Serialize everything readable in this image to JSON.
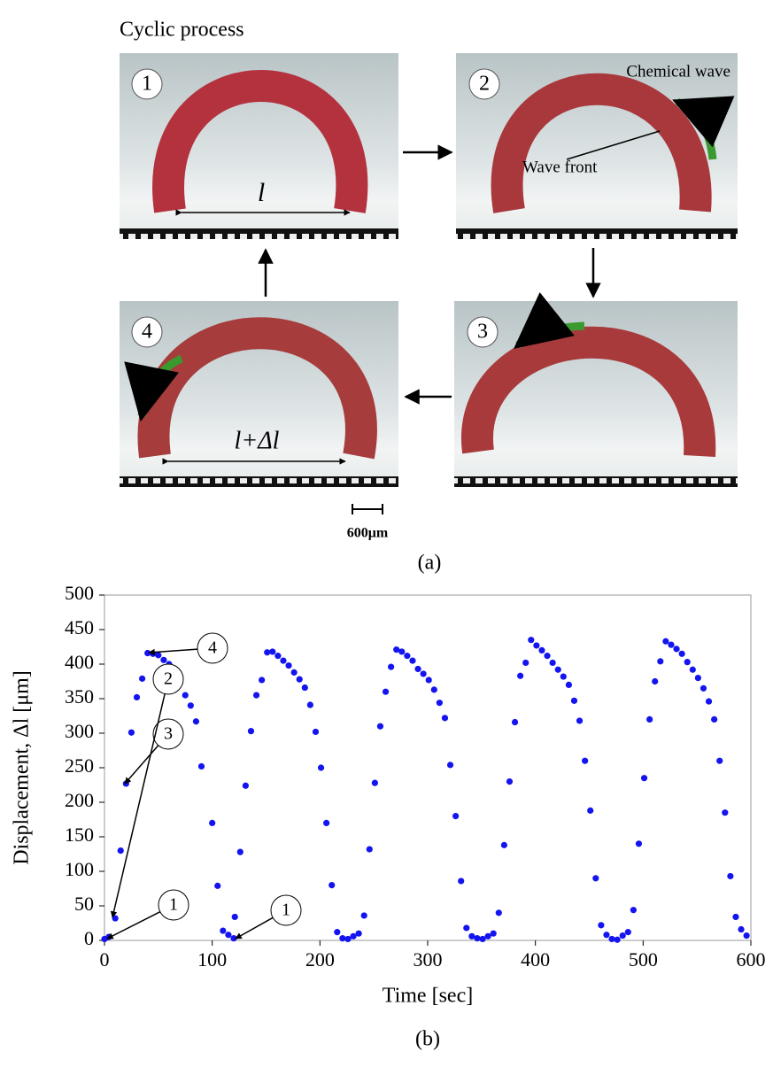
{
  "figure_a": {
    "title": "Cyclic process",
    "panels": [
      "1",
      "2",
      "3",
      "4"
    ],
    "chemical_wave": "Chemical wave",
    "wave_front": "Wave front",
    "length": "l",
    "length_plus": "l+Δl",
    "scale": "600μm",
    "caption": "(a)"
  },
  "chart_data": {
    "type": "scatter",
    "caption": "(b)",
    "xlabel": "Time [sec]",
    "ylabel": "Displacement, Δl [μm]",
    "color": "#1414f0",
    "x": [
      0,
      4,
      10,
      15,
      20,
      25,
      30,
      35,
      40,
      45,
      50,
      55,
      60,
      65,
      70,
      75,
      80,
      85,
      90,
      100,
      105,
      110,
      115,
      120,
      121,
      126,
      131,
      136,
      141,
      146,
      151,
      156,
      161,
      166,
      171,
      176,
      181,
      186,
      191,
      196,
      201,
      206,
      211,
      216,
      221,
      226,
      231,
      236,
      241,
      246,
      251,
      256,
      261,
      266,
      271,
      276,
      281,
      286,
      291,
      296,
      301,
      306,
      311,
      316,
      321,
      326,
      331,
      336,
      341,
      346,
      351,
      356,
      361,
      366,
      371,
      376,
      381,
      386,
      391,
      396,
      401,
      406,
      411,
      416,
      421,
      426,
      431,
      436,
      441,
      446,
      451,
      456,
      461,
      466,
      471,
      476,
      481,
      486,
      491,
      496,
      501,
      506,
      511,
      516,
      521,
      526,
      531,
      536,
      541,
      546,
      551,
      556,
      561,
      566,
      571,
      576,
      581,
      586,
      591,
      596
    ],
    "values": [
      2,
      5,
      32,
      130,
      227,
      301,
      352,
      379,
      416,
      415,
      413,
      406,
      400,
      383,
      373,
      355,
      340,
      317,
      252,
      170,
      79,
      14,
      8,
      3,
      34,
      128,
      224,
      303,
      355,
      377,
      417,
      418,
      412,
      405,
      398,
      388,
      378,
      366,
      341,
      302,
      250,
      170,
      80,
      12,
      3,
      2,
      6,
      10,
      36,
      132,
      228,
      310,
      360,
      396,
      421,
      418,
      412,
      405,
      393,
      386,
      377,
      363,
      344,
      322,
      254,
      180,
      86,
      18,
      6,
      3,
      2,
      6,
      10,
      40,
      138,
      230,
      316,
      383,
      402,
      435,
      427,
      420,
      412,
      402,
      392,
      382,
      370,
      347,
      318,
      260,
      188,
      90,
      22,
      8,
      2,
      1,
      7,
      12,
      44,
      140,
      235,
      320,
      375,
      404,
      433,
      428,
      422,
      415,
      403,
      392,
      380,
      365,
      346,
      320,
      260,
      185,
      93,
      34,
      16,
      7
    ],
    "xlim": [
      0,
      600
    ],
    "xticks": [
      0,
      100,
      200,
      300,
      400,
      500,
      600
    ],
    "ylim": [
      0,
      500
    ],
    "yticks": [
      0,
      50,
      100,
      150,
      200,
      250,
      300,
      350,
      400,
      450,
      500
    ],
    "annotations": [
      "4",
      "3",
      "2",
      "1",
      "1"
    ]
  }
}
